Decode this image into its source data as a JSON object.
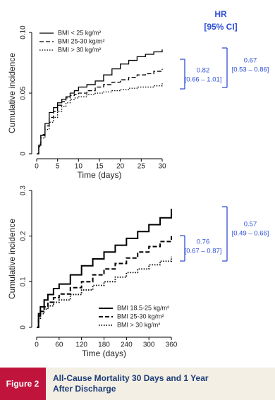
{
  "hr_header": [
    "HR",
    "[95% CI]"
  ],
  "chart_data": [
    {
      "type": "line",
      "step": true,
      "x_label": "Time (days)",
      "y_label": "Cumulative incidence",
      "x": [
        0,
        0.5,
        1,
        2,
        3,
        4,
        5,
        6,
        7,
        8,
        9,
        10,
        12,
        14,
        16,
        18,
        20,
        22,
        24,
        26,
        28,
        30
      ],
      "xlim": [
        0,
        30
      ],
      "xticks": [
        0,
        5,
        10,
        15,
        20,
        25,
        30
      ],
      "ylim": [
        0,
        0.1
      ],
      "yticks": [
        0,
        {
          "value": 0.05,
          "label": "0.05"
        },
        {
          "value": 0.1,
          "label": "0.10"
        }
      ],
      "legend": "top-left",
      "series": [
        {
          "name": "BMI < 25 kg/m²",
          "color": "#000000",
          "dash": "solid",
          "values": [
            0,
            0.007,
            0.015,
            0.025,
            0.034,
            0.038,
            0.042,
            0.045,
            0.047,
            0.05,
            0.052,
            0.055,
            0.057,
            0.06,
            0.065,
            0.07,
            0.074,
            0.077,
            0.08,
            0.082,
            0.084,
            0.086
          ]
        },
        {
          "name": "BMI 25-30 kg/m²",
          "color": "#000000",
          "dash": "dashed",
          "values": [
            0,
            0.008,
            0.016,
            0.023,
            0.03,
            0.035,
            0.04,
            0.043,
            0.046,
            0.048,
            0.049,
            0.05,
            0.052,
            0.055,
            0.057,
            0.059,
            0.061,
            0.063,
            0.065,
            0.066,
            0.068,
            0.07
          ]
        },
        {
          "name": "BMI > 30 kg/m²",
          "color": "#000000",
          "dash": "dotted",
          "values": [
            0,
            0.006,
            0.013,
            0.02,
            0.026,
            0.03,
            0.035,
            0.039,
            0.042,
            0.045,
            0.046,
            0.047,
            0.049,
            0.05,
            0.051,
            0.052,
            0.053,
            0.054,
            0.055,
            0.055,
            0.056,
            0.058
          ]
        }
      ],
      "annotations": [
        {
          "hr": "0.82",
          "ci": "[0.66 – 1.01]"
        },
        {
          "hr": "0.67",
          "ci": "[0.53 – 0.86]"
        }
      ]
    },
    {
      "type": "line",
      "step": true,
      "x_label": "Time (days)",
      "y_label": "Cumulative incidence",
      "x": [
        0,
        5,
        10,
        20,
        30,
        45,
        60,
        90,
        120,
        150,
        180,
        210,
        240,
        270,
        300,
        330,
        360
      ],
      "xlim": [
        0,
        360
      ],
      "xticks": [
        0,
        60,
        120,
        180,
        240,
        300,
        360
      ],
      "ylim": [
        0,
        0.3
      ],
      "yticks": [
        0,
        0.1,
        0.2,
        0.3
      ],
      "legend": "bottom-right",
      "series": [
        {
          "name": "BMI 18.5-25 kg/m²",
          "color": "#000000",
          "dash": "solid",
          "values": [
            0,
            0.03,
            0.045,
            0.06,
            0.072,
            0.085,
            0.095,
            0.115,
            0.135,
            0.15,
            0.165,
            0.18,
            0.195,
            0.21,
            0.225,
            0.24,
            0.26
          ]
        },
        {
          "name": "BMI 25-30 kg/m²",
          "color": "#000000",
          "dash": "dashed",
          "values": [
            0,
            0.025,
            0.035,
            0.045,
            0.055,
            0.065,
            0.073,
            0.087,
            0.1,
            0.115,
            0.128,
            0.14,
            0.152,
            0.165,
            0.177,
            0.188,
            0.2
          ]
        },
        {
          "name": "BMI > 30 kg/m²",
          "color": "#000000",
          "dash": "dotted",
          "values": [
            0,
            0.02,
            0.03,
            0.04,
            0.047,
            0.055,
            0.06,
            0.072,
            0.082,
            0.092,
            0.1,
            0.11,
            0.12,
            0.128,
            0.137,
            0.145,
            0.155
          ]
        }
      ],
      "annotations": [
        {
          "hr": "0.76",
          "ci": "[0.67 – 0.87]"
        },
        {
          "hr": "0.57",
          "ci": "[0.49 – 0.66]"
        }
      ]
    }
  ],
  "figure_label": "Figure 2",
  "caption": [
    "All-Cause Mortality 30 Days and 1 Year",
    "After Discharge"
  ]
}
